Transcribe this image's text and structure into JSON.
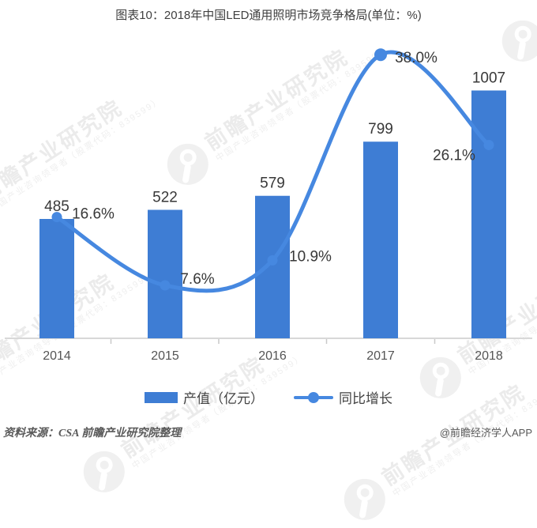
{
  "title": "图表10：2018年中国LED通用照明市场竞争格局(单位：%)",
  "chart_data": {
    "type": "bar",
    "subtype": "bar-line-combo",
    "categories": [
      "2014",
      "2015",
      "2016",
      "2017",
      "2018"
    ],
    "series": [
      {
        "name": "产值（亿元）",
        "type": "bar",
        "values": [
          485,
          522,
          579,
          799,
          1007
        ],
        "data_labels": [
          "485",
          "522",
          "579",
          "799",
          "1007"
        ],
        "color": "#3e7dd4"
      },
      {
        "name": "同比增长",
        "type": "line",
        "values": [
          16.6,
          7.6,
          10.9,
          38.0,
          26.1
        ],
        "data_labels": [
          "16.6%",
          "7.6%",
          "10.9%",
          "38.0%",
          "26.1%"
        ],
        "color": "#4688e0"
      }
    ],
    "title": "图表10：2018年中国LED通用照明市场竞争格局(单位：%)",
    "xlabel": "",
    "ylabel": "",
    "value_axis_visible": false,
    "grid": "off",
    "legend_position": "bottom"
  },
  "legend": {
    "items": [
      {
        "label": "产值（亿元）",
        "marker": "bar"
      },
      {
        "label": "同比增长",
        "marker": "line-dot"
      }
    ]
  },
  "footer": {
    "source": "资料来源：CSA 前瞻产业研究院整理",
    "credit": "@前瞻经济学人APP"
  },
  "watermark": {
    "big_text": "前瞻产业研究院",
    "small_text": "中国产业咨询领导者（股票代码：839599）"
  },
  "colors": {
    "bar": "#3e7dd4",
    "line": "#4688e0",
    "axis": "#d8d8d8",
    "tick": "#c9c9c9",
    "data_label": "#383838",
    "year_label": "#545454",
    "title": "#404040"
  }
}
